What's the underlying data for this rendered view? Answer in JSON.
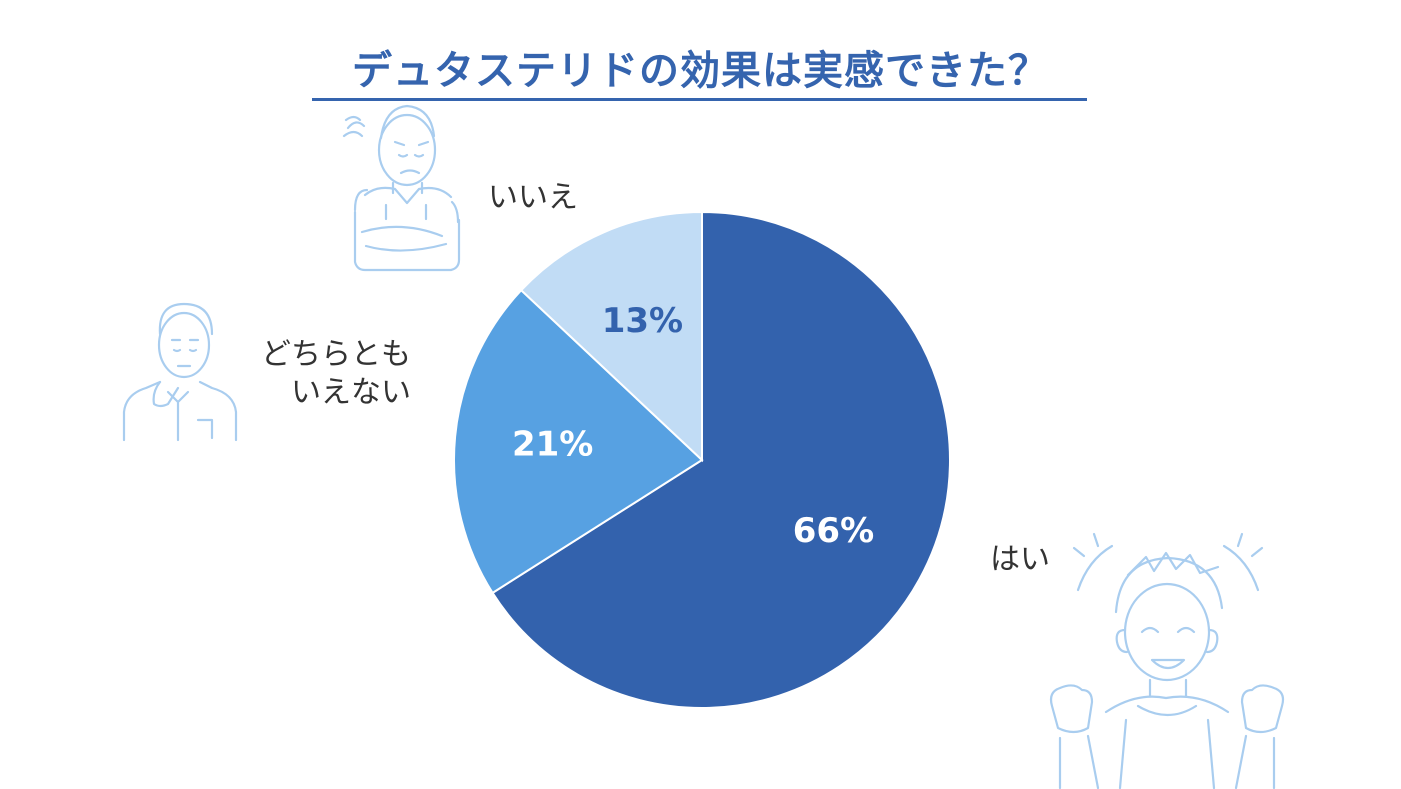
{
  "chart_data": {
    "type": "pie",
    "title": "デュタステリドの効果は実感できた？",
    "slices": [
      {
        "label": "はい",
        "value": 66,
        "value_label": "66%",
        "color": "#3362ad",
        "text_color": "#ffffff"
      },
      {
        "label": "どちらとも いえない",
        "label_lines": [
          "どちらとも",
          "いえない"
        ],
        "value": 21,
        "value_label": "21%",
        "color": "#57a1e2",
        "text_color": "#ffffff"
      },
      {
        "label": "いいえ",
        "value": 13,
        "value_label": "13%",
        "color": "#c1dcf5",
        "text_color": "#3362ad"
      }
    ],
    "start": "12 o'clock",
    "direction": "clockwise",
    "legend": "none (labels outside slices)"
  },
  "illustrations": [
    {
      "icon": "person-troubled-arms-crossed-icon",
      "next_to": "いいえ"
    },
    {
      "icon": "person-thinking-icon",
      "next_to": "どちらとも いえない"
    },
    {
      "icon": "person-happy-fists-icon",
      "next_to": "はい"
    }
  ],
  "colors": {
    "title": "#3564ae",
    "label_text": "#333333",
    "illustration_stroke": "#a9cdef"
  }
}
